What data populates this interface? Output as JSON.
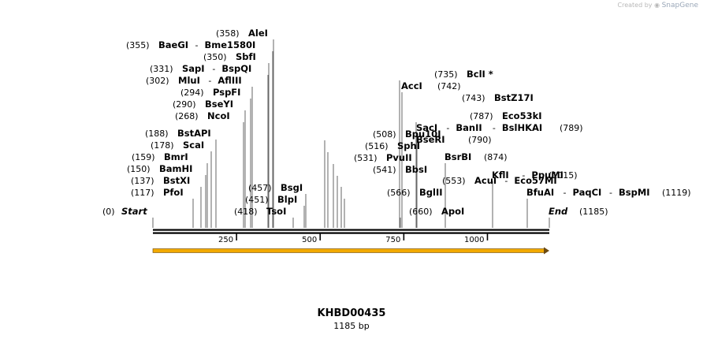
{
  "credit": {
    "text": "Created by",
    "brand": "SnapGene"
  },
  "plasmid": {
    "name": "KHBD00435",
    "length_label": "1185 bp"
  },
  "scale": {
    "min": 0,
    "max": 1185,
    "ticks": [
      "250",
      "500",
      "750",
      "1000"
    ]
  },
  "ends": [
    {
      "pos": "(0)",
      "name": "Start"
    },
    {
      "pos": "(1185)",
      "name": "End"
    }
  ],
  "sites": [
    {
      "pos": "(117)",
      "names": [
        "PfoI"
      ]
    },
    {
      "pos": "(137)",
      "names": [
        "BstXI"
      ]
    },
    {
      "pos": "(150)",
      "names": [
        "BamHI"
      ]
    },
    {
      "pos": "(159)",
      "names": [
        "BmrI"
      ]
    },
    {
      "pos": "(178)",
      "names": [
        "ScaI"
      ]
    },
    {
      "pos": "(188)",
      "names": [
        "BstAPI"
      ]
    },
    {
      "pos": "(268)",
      "names": [
        "NcoI"
      ]
    },
    {
      "pos": "(290)",
      "names": [
        "BseYI"
      ]
    },
    {
      "pos": "(294)",
      "names": [
        "PspFI"
      ]
    },
    {
      "pos": "(302)",
      "names": [
        "MluI",
        "AflIII"
      ]
    },
    {
      "pos": "(331)",
      "names": [
        "SapI",
        "BspQI"
      ]
    },
    {
      "pos": "(350)",
      "names": [
        "SbfI"
      ]
    },
    {
      "pos": "(355)",
      "names": [
        "BaeGI",
        "Bme1580I"
      ]
    },
    {
      "pos": "(358)",
      "names": [
        "AleI"
      ]
    },
    {
      "pos": "(418)",
      "names": [
        "TsoI"
      ]
    },
    {
      "pos": "(451)",
      "names": [
        "BlpI"
      ]
    },
    {
      "pos": "(457)",
      "names": [
        "BsgI"
      ]
    },
    {
      "pos": "(508)",
      "names": [
        "Bpu10I"
      ]
    },
    {
      "pos": "(516)",
      "names": [
        "SphI"
      ]
    },
    {
      "pos": "(531)",
      "names": [
        "PvuII"
      ]
    },
    {
      "pos": "(541)",
      "names": [
        "BbsI"
      ]
    },
    {
      "pos": "(553)",
      "names": [
        "AcuI",
        "Eco57MI"
      ]
    },
    {
      "pos": "(566)",
      "names": [
        "BglII"
      ]
    },
    {
      "pos": "(660)",
      "names": [
        "ApoI"
      ]
    },
    {
      "pos": "(735)",
      "names": [
        "BclI *"
      ]
    },
    {
      "pos": "(742)",
      "names": [
        "AccI"
      ]
    },
    {
      "pos": "(743)",
      "names": [
        "BstZ17I"
      ]
    },
    {
      "pos": "(787)",
      "names": [
        "Eco53kI"
      ]
    },
    {
      "pos": "(789)",
      "names": [
        "SacI",
        "BanII",
        "BslHKAI"
      ]
    },
    {
      "pos": "(790)",
      "names": [
        "BseRI"
      ]
    },
    {
      "pos": "(874)",
      "names": [
        "BsrBI"
      ]
    },
    {
      "pos": "(1015)",
      "names": [
        "KflI",
        "PpuMI"
      ]
    },
    {
      "pos": "(1119)",
      "names": [
        "BfuAI",
        "PaqCI",
        "BspMI"
      ]
    }
  ],
  "colors": {
    "backbone": "#000000",
    "feature_arrow": "#f2a900",
    "feature_outline": "#6b4a12",
    "leader_line": "#666666"
  }
}
